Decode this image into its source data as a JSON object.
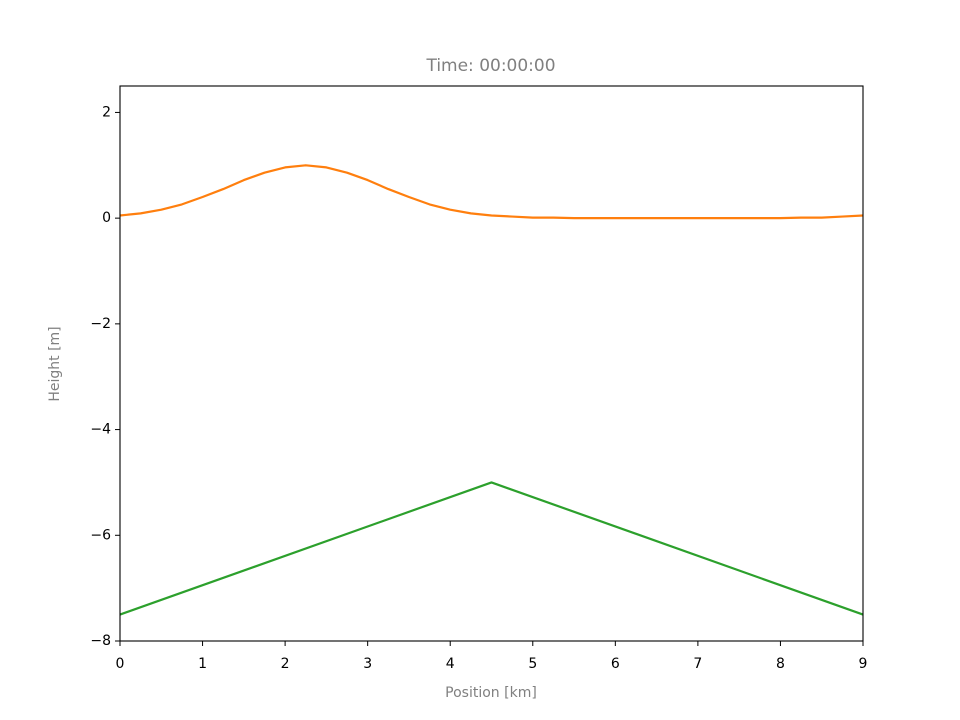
{
  "chart_data": {
    "type": "line",
    "title": "Time: 00:00:00",
    "xlabel": "Position [km]",
    "ylabel": "Height [m]",
    "xlim": [
      0,
      9
    ],
    "ylim": [
      -8,
      2.5
    ],
    "xticks": [
      0,
      1,
      2,
      3,
      4,
      5,
      6,
      7,
      8,
      9
    ],
    "yticks": [
      {
        "value": -8,
        "label": "−8"
      },
      {
        "value": -6,
        "label": "−6"
      },
      {
        "value": -4,
        "label": "−4"
      },
      {
        "value": -2,
        "label": "−2"
      },
      0,
      2
    ],
    "grid": false,
    "series": [
      {
        "color": "#ff7f0e",
        "x": [
          0,
          0.25,
          0.5,
          0.75,
          1,
          1.25,
          1.5,
          1.75,
          2,
          2.25,
          2.5,
          2.75,
          3,
          3.25,
          3.5,
          3.75,
          4,
          4.25,
          4.5,
          4.75,
          5,
          5.25,
          5.5,
          5.75,
          6,
          6.25,
          6.5,
          6.75,
          7,
          7.25,
          7.5,
          7.75,
          8,
          8.25,
          8.5,
          8.75,
          9
        ],
        "values": [
          0.05,
          0.09,
          0.16,
          0.26,
          0.4,
          0.55,
          0.72,
          0.86,
          0.96,
          1,
          0.96,
          0.86,
          0.72,
          0.55,
          0.4,
          0.26,
          0.16,
          0.09,
          0.05,
          0.03,
          0.01,
          0.01,
          0,
          0,
          0,
          0,
          0,
          0,
          0,
          0,
          0,
          0,
          0,
          0.01,
          0.01,
          0.03,
          0.05
        ]
      },
      {
        "color": "#2ca02c",
        "x": [
          0,
          4.5,
          9
        ],
        "values": [
          -7.5,
          -5,
          -7.5
        ]
      }
    ]
  }
}
